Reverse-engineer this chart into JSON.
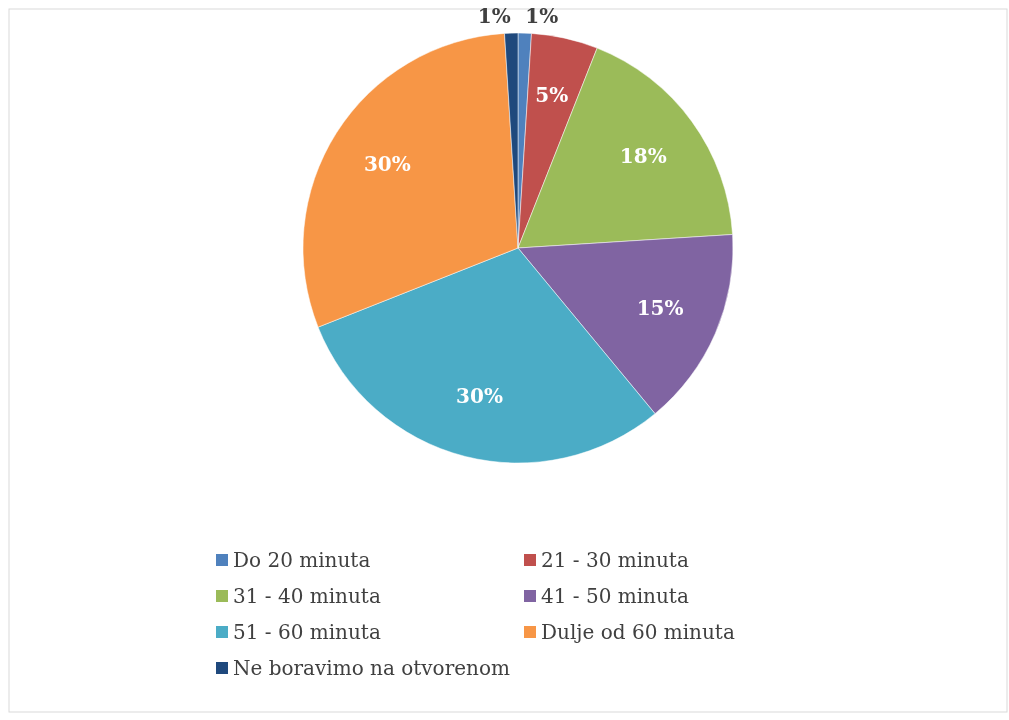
{
  "chart_data": {
    "type": "pie",
    "categories": [
      "Do 20 minuta",
      "21 - 30 minuta",
      "31 - 40 minuta",
      "41 - 50 minuta",
      "51 - 60 minuta",
      "Dulje od 60 minuta",
      "Ne boravimo na otvorenom"
    ],
    "values": [
      1,
      5,
      18,
      15,
      30,
      30,
      1
    ],
    "colors": [
      "#4f81bd",
      "#c0504d",
      "#9bbb59",
      "#8064a2",
      "#4bacc6",
      "#f79646",
      "#1f497d"
    ],
    "value_labels": [
      "1%",
      "5%",
      "18%",
      "15%",
      "30%",
      "30%",
      "1%"
    ],
    "legend": "bottom"
  }
}
